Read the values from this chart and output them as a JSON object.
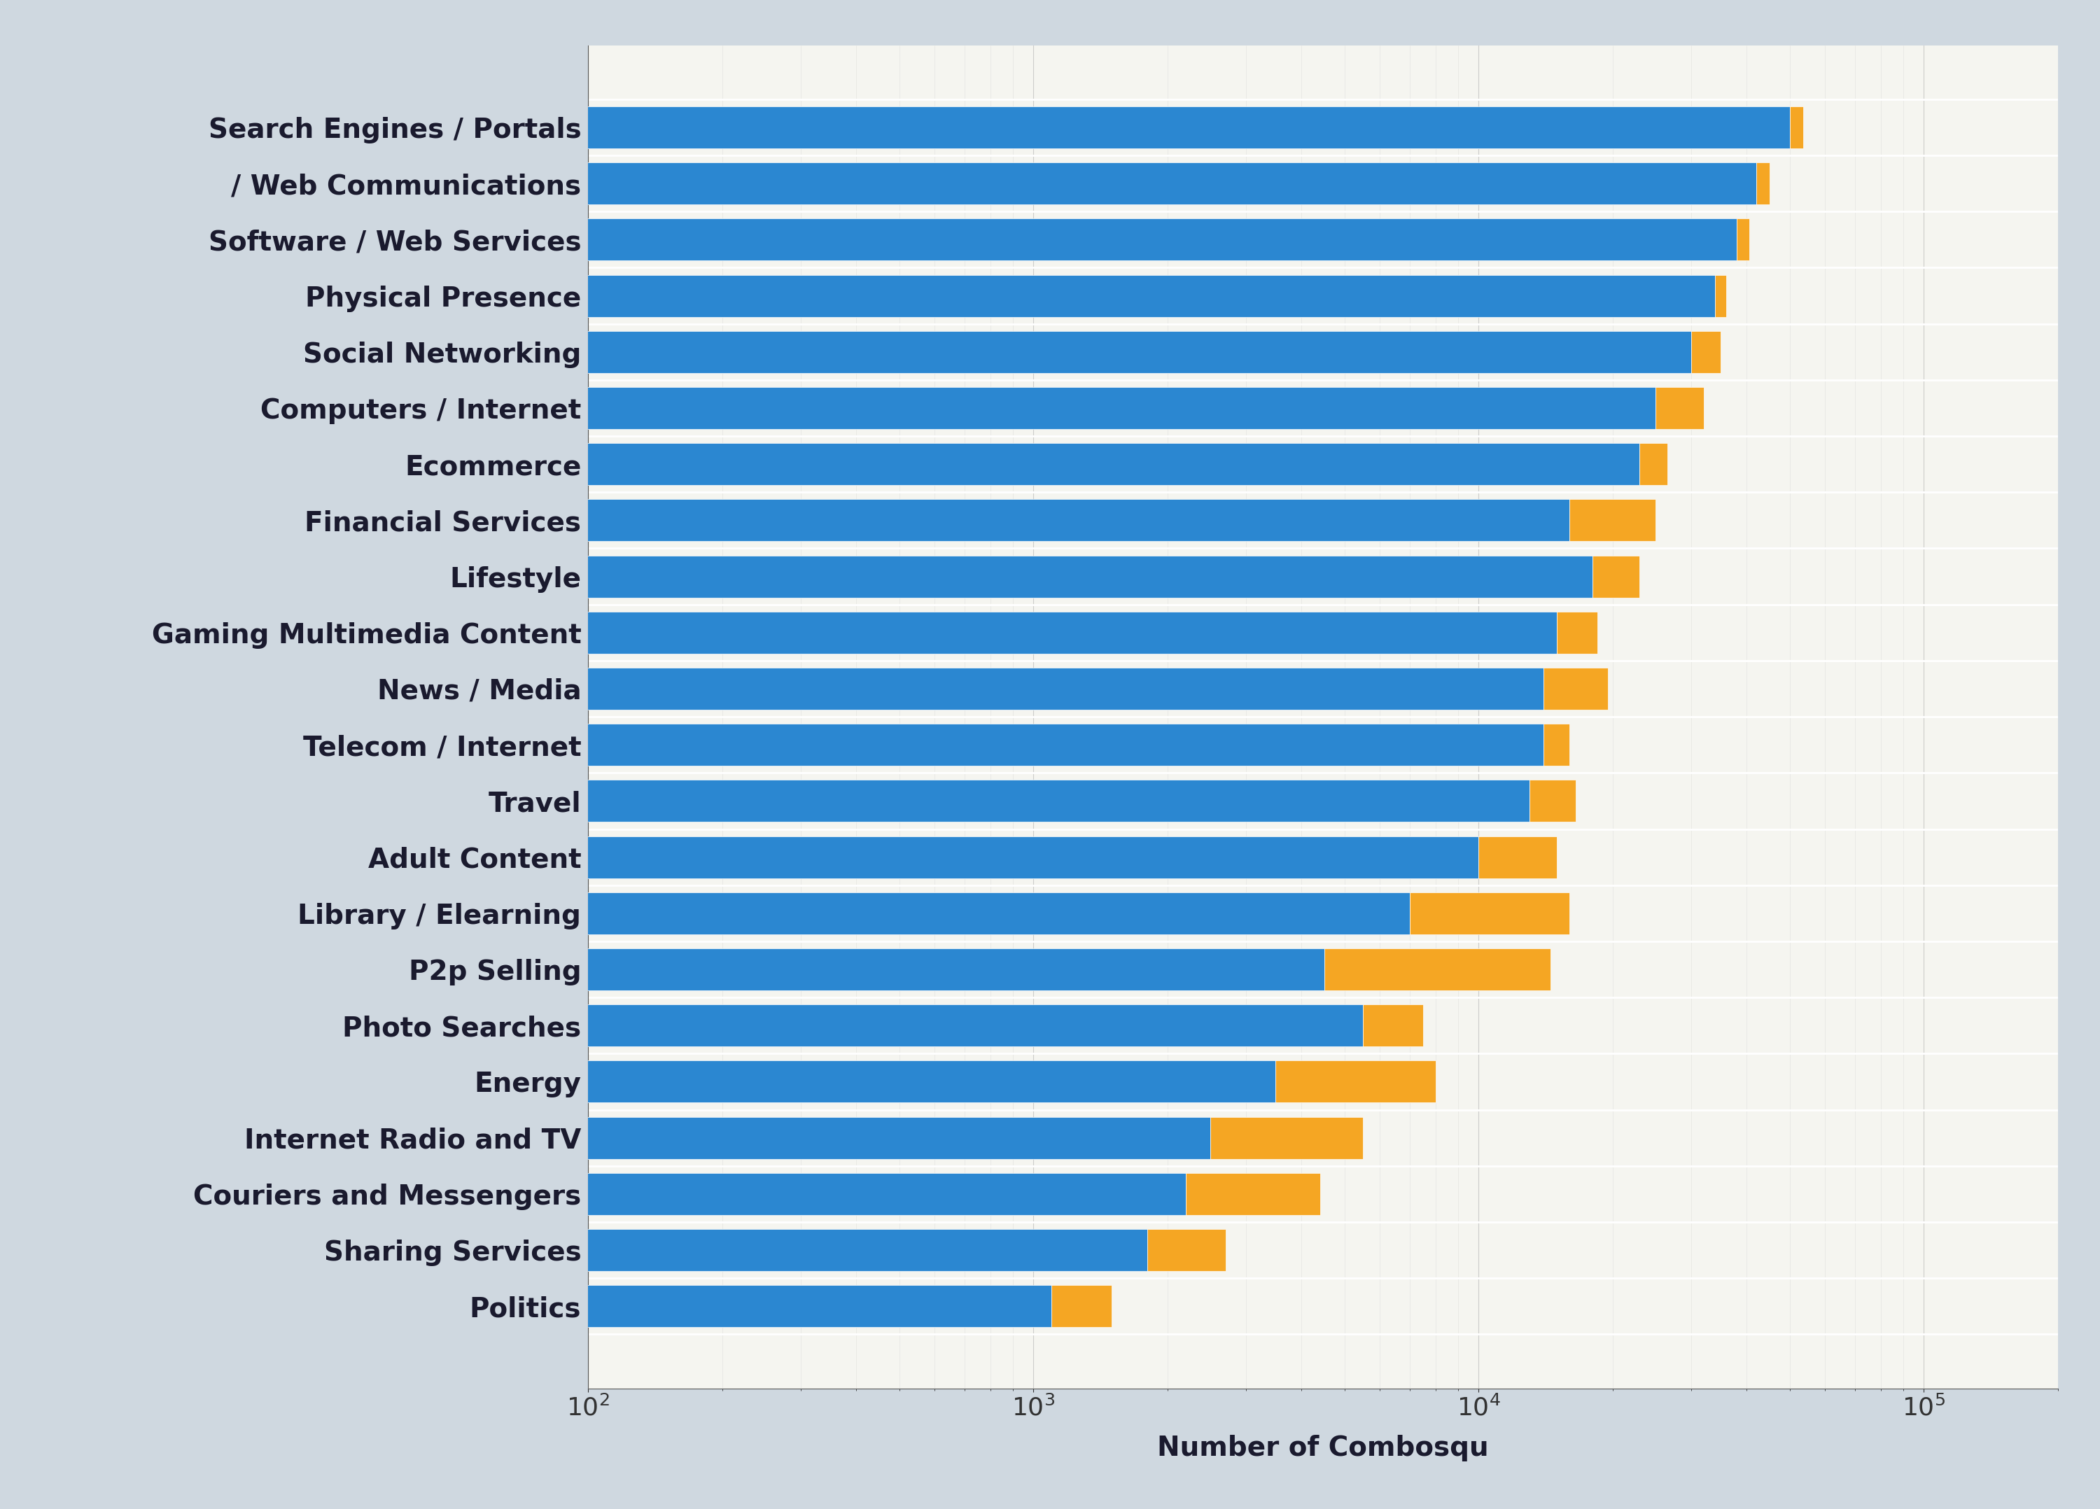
{
  "categories": [
    "Search Engines / Portals",
    "/ Web Communications",
    "Software / Web Services",
    "Physical Presence",
    "Social Networking",
    "Computers / Internet",
    "Ecommerce",
    "Financial Services",
    "Lifestyle",
    "Gaming Multimedia Content",
    "News / Media",
    "Telecom / Internet",
    "Travel",
    "Adult Content",
    "Library / Elearning",
    "P2p Selling",
    "Photo Searches",
    "Energy",
    "Internet Radio and TV",
    "Couriers and Messengers",
    "Sharing Services",
    "Politics"
  ],
  "blue_values": [
    50000,
    42000,
    38000,
    34000,
    30000,
    25000,
    23000,
    16000,
    18000,
    15000,
    14000,
    14000,
    13000,
    10000,
    7000,
    4500,
    5500,
    3500,
    2500,
    2200,
    1800,
    1100
  ],
  "orange_values": [
    3500,
    3000,
    2500,
    2000,
    5000,
    7000,
    3500,
    9000,
    5000,
    3500,
    5500,
    2000,
    3500,
    5000,
    9000,
    10000,
    2000,
    4500,
    3000,
    2200,
    900,
    400
  ],
  "blue_color": "#2b87d1",
  "orange_color": "#f5a623",
  "xlabel": "Number of Combosqu",
  "bg_color": "#cfd8e0",
  "plot_bg_color": "#f5f5f0",
  "label_fontsize": 28,
  "tick_fontsize": 26,
  "bar_height": 0.75,
  "xlim_min": 100,
  "xlim_max": 200000,
  "bar_edge_color": "#cccccc",
  "separator_color": "#d0d0d0"
}
